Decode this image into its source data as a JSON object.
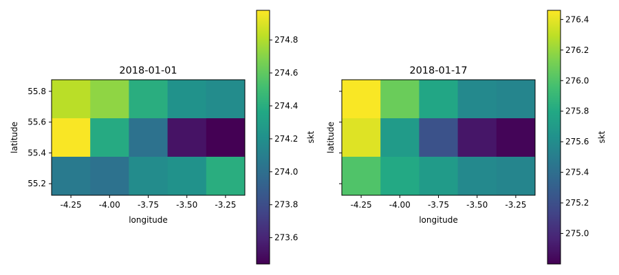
{
  "chart_data": [
    {
      "type": "heatmap",
      "title": "2018-01-01",
      "xlabel": "longitude",
      "ylabel": "latitude",
      "x": [
        -4.25,
        -4.0,
        -3.75,
        -3.5,
        -3.25
      ],
      "y": [
        55.75,
        55.5,
        55.25
      ],
      "x_ticks": [
        "-4.25",
        "-4.00",
        "-3.75",
        "-3.50",
        "-3.25"
      ],
      "y_ticks": [
        "55.8",
        "55.6",
        "55.4",
        "55.2"
      ],
      "y_ticks_visible": true,
      "values": [
        [
          274.82,
          274.72,
          274.4,
          274.22,
          274.18
        ],
        [
          274.97,
          274.38,
          274.02,
          273.52,
          273.44
        ],
        [
          274.07,
          274.02,
          274.18,
          274.22,
          274.4
        ]
      ],
      "colorbar": {
        "label": "skt",
        "range": [
          273.44,
          274.98
        ],
        "ticks": [
          "273.6",
          "273.8",
          "274.0",
          "274.2",
          "274.4",
          "274.6",
          "274.8"
        ],
        "tick_values": [
          273.6,
          273.8,
          274.0,
          274.2,
          274.4,
          274.6,
          274.8
        ]
      },
      "colormap": "viridis",
      "grid": false
    },
    {
      "type": "heatmap",
      "title": "2018-01-17",
      "xlabel": "longitude",
      "ylabel": "latitude",
      "x": [
        -4.25,
        -4.0,
        -3.75,
        -3.5,
        -3.25
      ],
      "y": [
        55.75,
        55.5,
        55.25
      ],
      "x_ticks": [
        "-4.25",
        "-4.00",
        "-3.75",
        "-3.50",
        "-3.25"
      ],
      "y_ticks": [
        "55.8",
        "55.6",
        "55.4",
        "55.2"
      ],
      "y_ticks_visible": false,
      "values": [
        [
          276.45,
          276.08,
          275.78,
          275.58,
          275.55
        ],
        [
          276.38,
          275.7,
          275.22,
          274.9,
          274.82
        ],
        [
          276.0,
          275.8,
          275.7,
          275.58,
          275.55
        ]
      ],
      "colorbar": {
        "label": "skt",
        "range": [
          274.8,
          276.46
        ],
        "ticks": [
          "275.0",
          "275.2",
          "275.4",
          "275.6",
          "275.8",
          "276.0",
          "276.2",
          "276.4"
        ],
        "tick_values": [
          275.0,
          275.2,
          275.4,
          275.6,
          275.8,
          276.0,
          276.2,
          276.4
        ]
      },
      "colormap": "viridis",
      "grid": false
    }
  ]
}
